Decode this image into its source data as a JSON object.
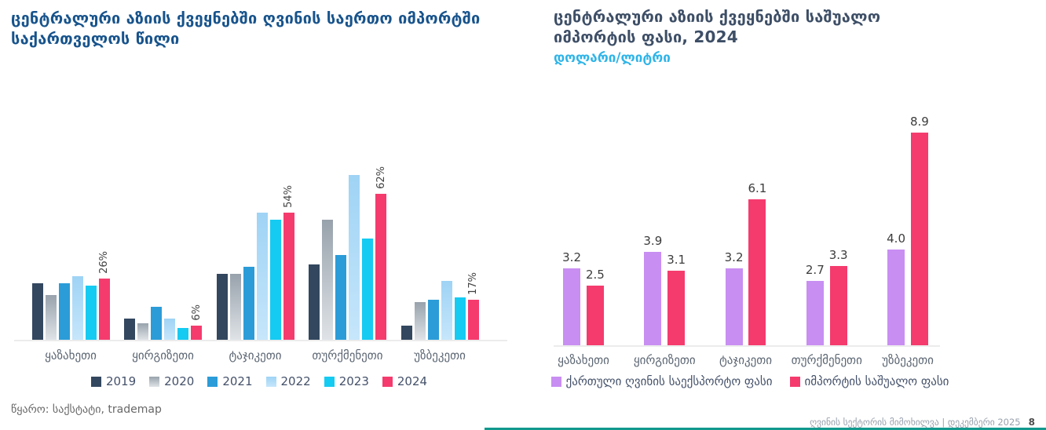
{
  "chart_data": [
    {
      "type": "bar",
      "title": "ცენტრალური აზიის ქვეყნებში ღვინის საერთო იმპორტში საქართველოს წილი",
      "unit": "%",
      "categories": [
        "ყაზახეთი",
        "ყირგიზეთი",
        "ტაჯიკეთი",
        "თურქმენეთი",
        "უზბეკეთი"
      ],
      "series": [
        {
          "name": "2019",
          "color": "#33475f",
          "values": [
            24,
            9,
            28,
            32,
            6
          ]
        },
        {
          "name": "2020",
          "color": "#9aa4ae",
          "gradient": [
            "#98a2ac",
            "#dfe3e7"
          ],
          "values": [
            19,
            7,
            28,
            51,
            16
          ]
        },
        {
          "name": "2021",
          "color": "#2b9cd8",
          "values": [
            24,
            14,
            31,
            36,
            17
          ]
        },
        {
          "name": "2022",
          "color": "#a5d9f7",
          "gradient": [
            "#9fd3f5",
            "#c6e6fb"
          ],
          "values": [
            27,
            9,
            54,
            70,
            25
          ]
        },
        {
          "name": "2023",
          "color": "#15cbf2",
          "values": [
            23,
            5,
            51,
            43,
            18
          ]
        },
        {
          "name": "2024",
          "color": "#f53b6e",
          "values": [
            26,
            6,
            54,
            62,
            17
          ]
        }
      ],
      "bar_labels_2024": [
        "26%",
        "6%",
        "54%",
        "62%",
        "17%"
      ],
      "ylim": [
        0,
        75
      ],
      "grid": false,
      "legend_position": "bottom"
    },
    {
      "type": "bar",
      "title": "ცენტრალური აზიის ქვეყნებში საშუალო იმპორტის ფასი, 2024",
      "subtitle": "დოლარი/ლიტრი",
      "categories": [
        "ყაზახეთი",
        "ყირგიზეთი",
        "ტაჯიკეთი",
        "თურქმენეთი",
        "უზბეკეთი"
      ],
      "series": [
        {
          "name": "ქართული ღვინის საექსპორტო ფასი",
          "color": "#c88ef2",
          "values": [
            3.2,
            3.9,
            3.2,
            2.7,
            4.0
          ]
        },
        {
          "name": "იმპორტის საშუალო ფასი",
          "color": "#f53b6e",
          "values": [
            2.5,
            3.1,
            6.1,
            3.3,
            8.9
          ]
        }
      ],
      "value_labels": [
        [
          "3.2",
          "3.9",
          "3.2",
          "2.7",
          "4.0"
        ],
        [
          "2.5",
          "3.1",
          "6.1",
          "3.3",
          "8.9"
        ]
      ],
      "ylim": [
        0,
        9.5
      ],
      "grid": false,
      "legend_position": "bottom"
    }
  ],
  "colors": {
    "left_title": "#17538c",
    "right_title": "#3d4e66",
    "subtitle_cyan": "#2eb4e8",
    "axis_line": "#ececec",
    "accent_teal": "#12998e"
  },
  "footer": {
    "source": "წყარო: საქსტატი, trademap",
    "report": "ღვინის სექტორის მიმოხილვა | დეკემბერი 2025",
    "page": "8"
  }
}
